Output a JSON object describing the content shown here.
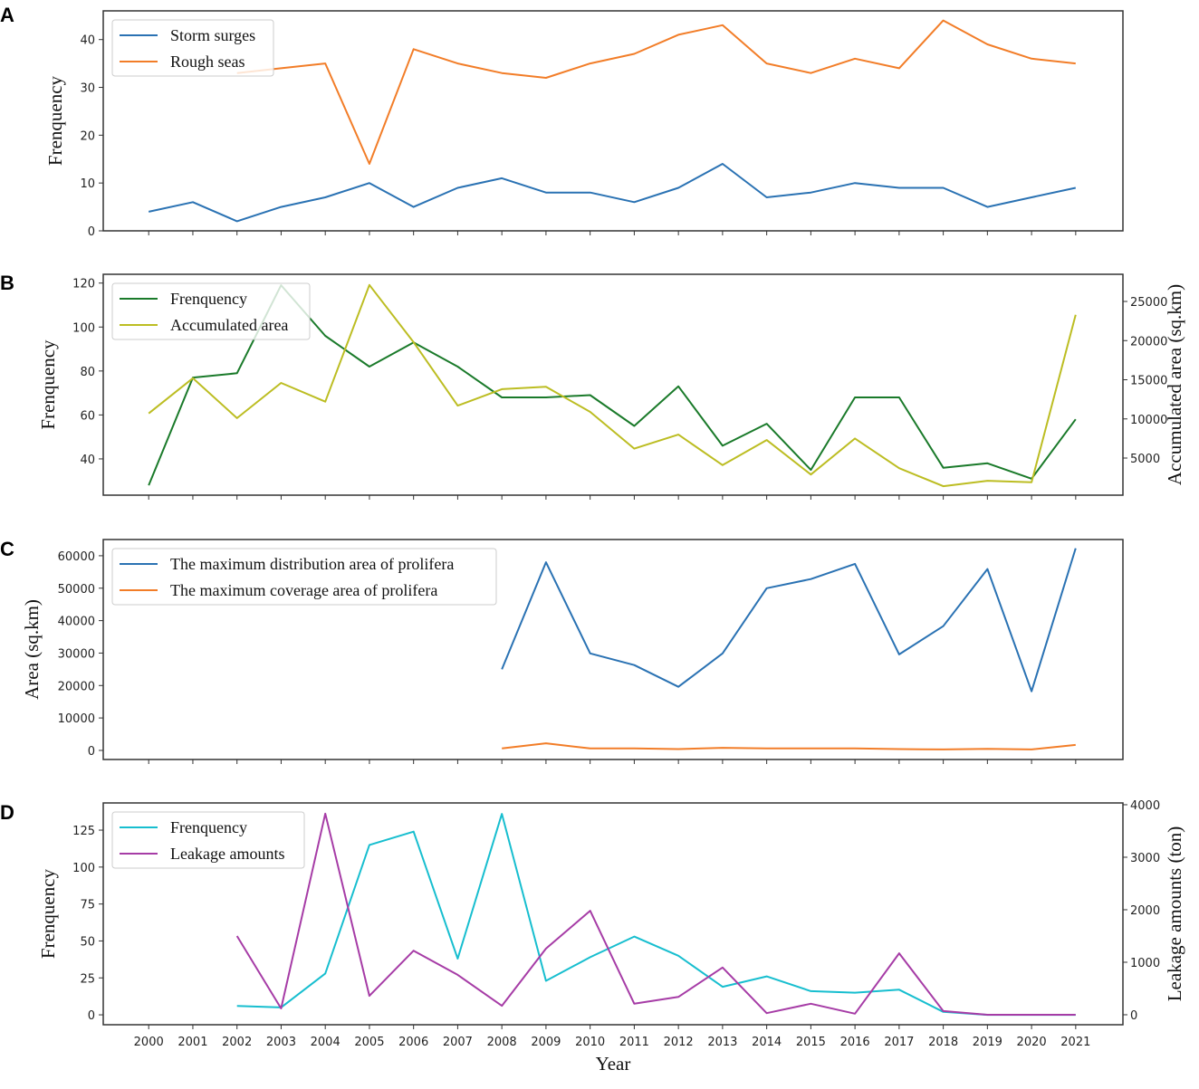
{
  "chart_data": [
    {
      "panel": "A",
      "type": "line",
      "xlabel": "",
      "ylabel": "Frenquency",
      "x": [
        2000,
        2001,
        2002,
        2003,
        2004,
        2005,
        2006,
        2007,
        2008,
        2009,
        2010,
        2011,
        2012,
        2013,
        2014,
        2015,
        2016,
        2017,
        2018,
        2019,
        2020,
        2021
      ],
      "xlim": [
        1998.97,
        2022.07
      ],
      "ylim": [
        0,
        46
      ],
      "yticks": [
        0,
        10,
        20,
        30,
        40
      ],
      "legend_position": "top-left",
      "series": [
        {
          "name": "Storm surges",
          "color": "#2a72b3",
          "axis": "left",
          "values": [
            4,
            6,
            2,
            5,
            7,
            10,
            5,
            9,
            11,
            8,
            8,
            6,
            9,
            14,
            7,
            8,
            10,
            9,
            9,
            5,
            7,
            9
          ]
        },
        {
          "name": "Rough seas",
          "color": "#f27d28",
          "axis": "left",
          "values": [
            null,
            null,
            33,
            34,
            35,
            14,
            38,
            35,
            33,
            32,
            35,
            37,
            41,
            43,
            35,
            33,
            36,
            34,
            44,
            39,
            36,
            35
          ]
        }
      ]
    },
    {
      "panel": "B",
      "type": "line",
      "xlabel": "",
      "ylabel": "Frenquency",
      "ylabel_right": "Accumulated area (sq.km)",
      "x": [
        2000,
        2001,
        2002,
        2003,
        2004,
        2005,
        2006,
        2007,
        2008,
        2009,
        2010,
        2011,
        2012,
        2013,
        2014,
        2015,
        2016,
        2017,
        2018,
        2019,
        2020,
        2021
      ],
      "xlim": [
        1998.97,
        2022.07
      ],
      "ylim": [
        23.5,
        124
      ],
      "ylim_right": [
        260,
        28470
      ],
      "yticks": [
        40,
        60,
        80,
        100,
        120
      ],
      "yticks_right": [
        5000,
        10000,
        15000,
        20000,
        25000
      ],
      "legend_position": "top-left",
      "series": [
        {
          "name": "Frenquency",
          "color": "#1a7a2a",
          "axis": "left",
          "values": [
            28,
            77,
            79,
            119,
            96,
            82,
            93,
            82,
            68,
            68,
            69,
            55,
            73,
            46,
            56,
            35,
            68,
            68,
            36,
            38,
            31,
            58
          ]
        },
        {
          "name": "Accumulated area",
          "color": "#bcbd22",
          "axis": "right",
          "values": [
            10700,
            15200,
            10100,
            14600,
            12200,
            27100,
            19800,
            11700,
            13800,
            14100,
            10900,
            6200,
            8000,
            4100,
            7300,
            2900,
            7500,
            3700,
            1400,
            2100,
            1900,
            23300
          ]
        }
      ]
    },
    {
      "panel": "C",
      "type": "line",
      "xlabel": "",
      "ylabel": "Area (sq.km)",
      "x": [
        2000,
        2001,
        2002,
        2003,
        2004,
        2005,
        2006,
        2007,
        2008,
        2009,
        2010,
        2011,
        2012,
        2013,
        2014,
        2015,
        2016,
        2017,
        2018,
        2019,
        2020,
        2021
      ],
      "xlim": [
        1998.97,
        2022.07
      ],
      "ylim": [
        -2800,
        65000
      ],
      "yticks": [
        0,
        10000,
        20000,
        30000,
        40000,
        50000,
        60000
      ],
      "legend_position": "top-left",
      "series": [
        {
          "name": "The maximum distribution area of prolifera",
          "color": "#2a72b3",
          "axis": "left",
          "values": [
            null,
            null,
            null,
            null,
            null,
            null,
            null,
            null,
            25000,
            58000,
            29900,
            26300,
            19600,
            29900,
            50000,
            52800,
            57500,
            29600,
            38300,
            55900,
            18200,
            62300
          ]
        },
        {
          "name": "The maximum coverage area of prolifera",
          "color": "#f27d28",
          "axis": "left",
          "values": [
            null,
            null,
            null,
            null,
            null,
            null,
            null,
            null,
            600,
            2200,
            600,
            600,
            400,
            800,
            600,
            600,
            600,
            400,
            300,
            500,
            300,
            1700
          ]
        }
      ]
    },
    {
      "panel": "D",
      "type": "line",
      "xlabel": "Year",
      "ylabel": "Frenquency",
      "ylabel_right": "Leakage amounts (ton)",
      "x": [
        2000,
        2001,
        2002,
        2003,
        2004,
        2005,
        2006,
        2007,
        2008,
        2009,
        2010,
        2011,
        2012,
        2013,
        2014,
        2015,
        2016,
        2017,
        2018,
        2019,
        2020,
        2021
      ],
      "xlim": [
        1998.97,
        2022.07
      ],
      "ylim": [
        -6.7,
        143.4
      ],
      "ylim_right": [
        -190,
        4034
      ],
      "yticks": [
        0,
        25,
        50,
        75,
        100,
        125
      ],
      "yticks_right": [
        0,
        1000,
        2000,
        3000,
        4000
      ],
      "legend_position": "top-left",
      "series": [
        {
          "name": "Frenquency",
          "color": "#17becf",
          "axis": "left",
          "values": [
            null,
            null,
            6,
            5,
            28,
            115,
            124,
            38,
            136,
            23,
            39,
            53,
            40,
            19,
            26,
            16,
            15,
            17,
            2,
            0,
            0,
            0
          ]
        },
        {
          "name": "Leakage amounts",
          "color": "#a63ca6",
          "axis": "right",
          "values": [
            null,
            null,
            1500,
            120,
            3830,
            360,
            1220,
            760,
            170,
            1260,
            1980,
            210,
            340,
            900,
            30,
            210,
            20,
            1170,
            70,
            0,
            0,
            0
          ]
        }
      ]
    }
  ]
}
